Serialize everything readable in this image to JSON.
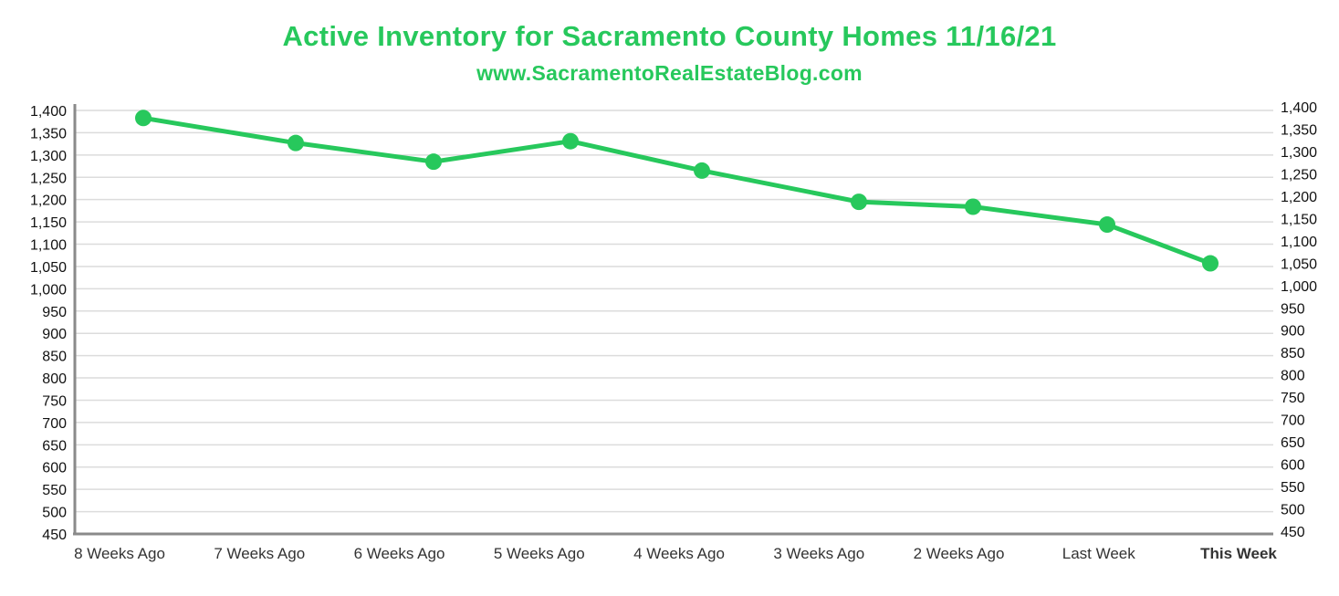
{
  "colors": {
    "accent": "#27c85c",
    "axis": "#8a8a8a",
    "grid": "#dcdcdc",
    "text": "#222222"
  },
  "chart_data": {
    "type": "line",
    "title": "Active Inventory for Sacramento County Homes 11/16/21",
    "subtitle": "www.SacramentoRealEstateBlog.com",
    "categories": [
      "8 Weeks Ago",
      "7 Weeks Ago",
      "6 Weeks Ago",
      "5 Weeks Ago",
      "4 Weeks Ago",
      "3 Weeks Ago",
      "2 Weeks Ago",
      "Last Week",
      "This Week"
    ],
    "highlight_category": "This Week",
    "series": [
      {
        "name": "Active Inventory",
        "values": [
          1383,
          1327,
          1285,
          1331,
          1265,
          1195,
          1184,
          1144,
          1057
        ]
      }
    ],
    "y_ticks_left": [
      "1,400",
      "1,350",
      "1,300",
      "1,250",
      "1,200",
      "1,150",
      "1,100",
      "1,050",
      "1,000",
      "950",
      "900",
      "850",
      "800",
      "750",
      "700",
      "650",
      "600",
      "550",
      "500",
      "450"
    ],
    "y_ticks_right": [
      "1,400",
      "1,350",
      "1,300",
      "1,250",
      "1,200",
      "1,150",
      "1,100",
      "1,050",
      "1,000",
      "950",
      "900",
      "850",
      "800",
      "750",
      "700",
      "650",
      "600",
      "550",
      "500",
      "450"
    ],
    "ylim": [
      450,
      1400
    ],
    "grid": true,
    "xlabel": "",
    "ylabel": ""
  }
}
